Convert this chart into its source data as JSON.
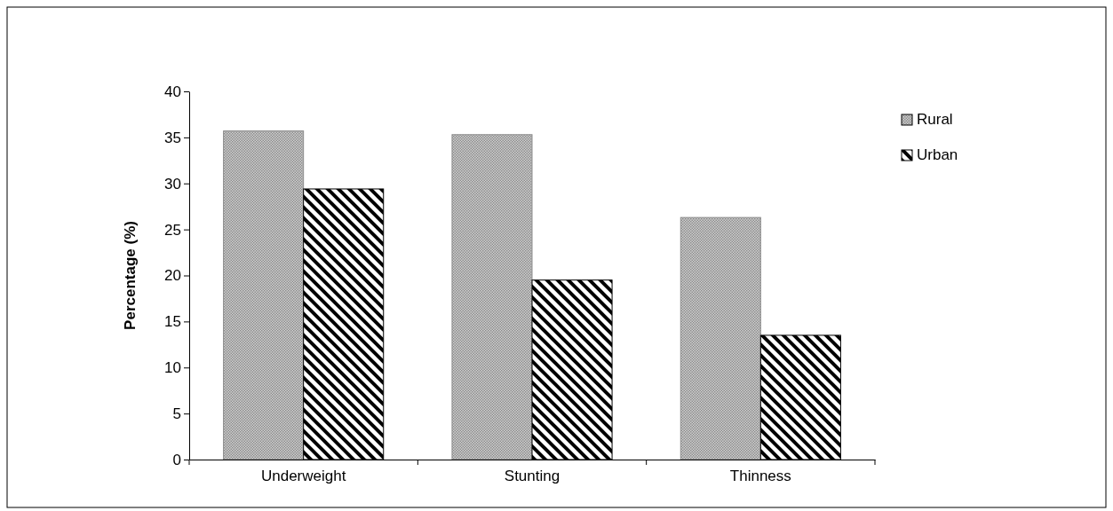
{
  "chart_data": {
    "type": "bar",
    "ylabel": "Percentage (%)",
    "categories": [
      "Underweight",
      "Stunting",
      "Thinness"
    ],
    "series": [
      {
        "name": "Rural",
        "color": "#8c8c8c",
        "values": [
          35.7,
          35.3,
          26.3
        ]
      },
      {
        "name": "Urban",
        "color": "#000000",
        "values": [
          29.4,
          19.5,
          13.5
        ]
      }
    ],
    "ylim": [
      0,
      40
    ],
    "yticks": [
      0,
      5,
      10,
      15,
      20,
      25,
      30,
      35,
      40
    ],
    "legend": "top right",
    "grid": false
  }
}
